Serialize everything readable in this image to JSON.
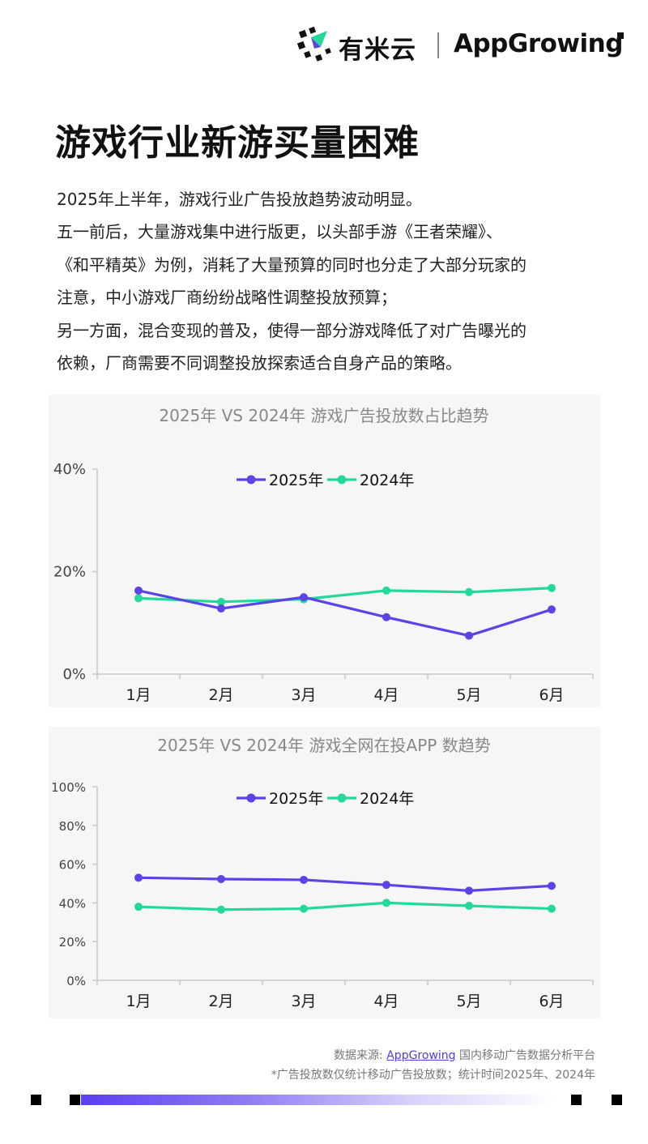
{
  "header": {
    "logo_cn": "有米云",
    "logo_en_prefix": "App",
    "logo_en_g": "G",
    "logo_en_suffix": "rowing"
  },
  "page_title": "游戏行业新游买量困难",
  "intro_lines": [
    "2025年上半年，游戏行业广告投放趋势波动明显。",
    "五一前后，大量游戏集中进行版更，以头部手游《王者荣耀》、",
    "《和平精英》为例，消耗了大量预算的同时也分走了大部分玩家的",
    "注意，中小游戏厂商纷纷战略性调整投放预算；",
    "另一方面，混合变现的普及，使得一部分游戏降低了对广告曝光的",
    "依赖，厂商需要不同调整投放探索适合自身产品的策略。"
  ],
  "chart_data": [
    {
      "type": "line",
      "title": "2025年 VS 2024年 游戏广告投放数占比趋势",
      "categories": [
        "1月",
        "2月",
        "3月",
        "4月",
        "5月",
        "6月"
      ],
      "series": [
        {
          "name": "2025年",
          "color": "#5b43e6",
          "values": [
            16.3,
            12.8,
            15.0,
            11.1,
            7.5,
            12.6
          ]
        },
        {
          "name": "2024年",
          "color": "#22d99b",
          "values": [
            14.8,
            14.1,
            14.6,
            16.3,
            16.0,
            16.8
          ]
        }
      ],
      "ylim": [
        0,
        40
      ],
      "yticks": [
        0,
        20,
        40
      ],
      "ytick_labels": [
        "0%",
        "20%",
        "40%"
      ],
      "legend": "top-center"
    },
    {
      "type": "line",
      "title": "2025年 VS 2024年 游戏全网在投APP 数趋势",
      "categories": [
        "1月",
        "2月",
        "3月",
        "4月",
        "5月",
        "6月"
      ],
      "series": [
        {
          "name": "2025年",
          "color": "#5b43e6",
          "values": [
            53,
            52.3,
            51.9,
            49.3,
            46.3,
            48.8
          ]
        },
        {
          "name": "2024年",
          "color": "#22d99b",
          "values": [
            38,
            36.5,
            37,
            40,
            38.5,
            37
          ]
        }
      ],
      "ylim": [
        0,
        100
      ],
      "yticks": [
        0,
        20,
        40,
        60,
        80,
        100
      ],
      "ytick_labels": [
        "0%",
        "20%",
        "40%",
        "60%",
        "80%",
        "100%"
      ],
      "legend": "top-center"
    }
  ],
  "footer": {
    "source_prefix": "数据来源: ",
    "source_link": "AppGrowing",
    "source_suffix": " 国内移动广告数据分析平台",
    "note": "*广告投放数仅统计移动广告投放数；统计时间2025年、2024年"
  }
}
